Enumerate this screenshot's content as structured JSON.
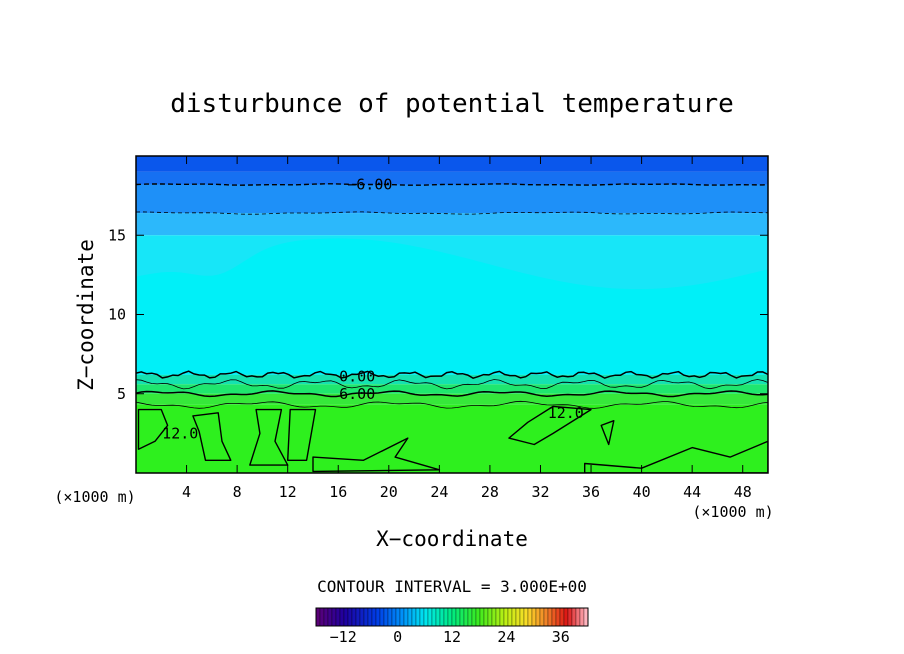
{
  "chart_data": {
    "type": "heatmap",
    "title": "disturbunce of potential temperature",
    "xlabel": "X−coordinate",
    "ylabel": "Z−coordinate",
    "x_unit_left": "(×1000 m)",
    "x_unit_right": "(×1000 m)",
    "xlim": [
      0,
      50
    ],
    "ylim": [
      0,
      20
    ],
    "xticks": [
      4,
      8,
      12,
      16,
      20,
      24,
      28,
      32,
      36,
      40,
      44,
      48
    ],
    "yticks": [
      5,
      10,
      15
    ],
    "contour_interval_text": "CONTOUR INTERVAL = 3.000E+00",
    "colorbar": {
      "range": [
        -18,
        42
      ],
      "ticks": [
        -12,
        0,
        12,
        24,
        36
      ]
    },
    "contour_labels": [
      {
        "text": "−6.00",
        "x": 18.5,
        "y": 18.2
      },
      {
        "text": "0.00",
        "x": 17.5,
        "y": 6.1
      },
      {
        "text": "6.00",
        "x": 17.5,
        "y": 5.0
      },
      {
        "text": "12.0",
        "x": 34.0,
        "y": 3.8
      },
      {
        "text": "12.0",
        "x": 3.5,
        "y": 2.5
      }
    ],
    "layers": [
      {
        "zmin": 19.0,
        "zmax": 20.0,
        "value": -12,
        "color": "#0a57ec"
      },
      {
        "zmin": 18.2,
        "zmax": 19.0,
        "value": -9,
        "color": "#1670f2"
      },
      {
        "zmin": 16.4,
        "zmax": 18.2,
        "value": -6,
        "color": "#1e90f8"
      },
      {
        "zmin": 15.0,
        "zmax": 16.4,
        "value": -3,
        "color": "#2cb8fb"
      },
      {
        "zmin": 6.2,
        "zmax": 15.0,
        "value": 0,
        "color": "#17e6f8"
      },
      {
        "zmin": 5.6,
        "zmax": 6.2,
        "value": 3,
        "color": "#15e2b0"
      },
      {
        "zmin": 5.0,
        "zmax": 5.6,
        "value": 6,
        "color": "#1fe66e"
      },
      {
        "zmin": 4.3,
        "zmax": 5.0,
        "value": 9,
        "color": "#36e83a"
      },
      {
        "zmin": 0.0,
        "zmax": 4.3,
        "value": 12,
        "color": "#2ef01e"
      }
    ]
  }
}
